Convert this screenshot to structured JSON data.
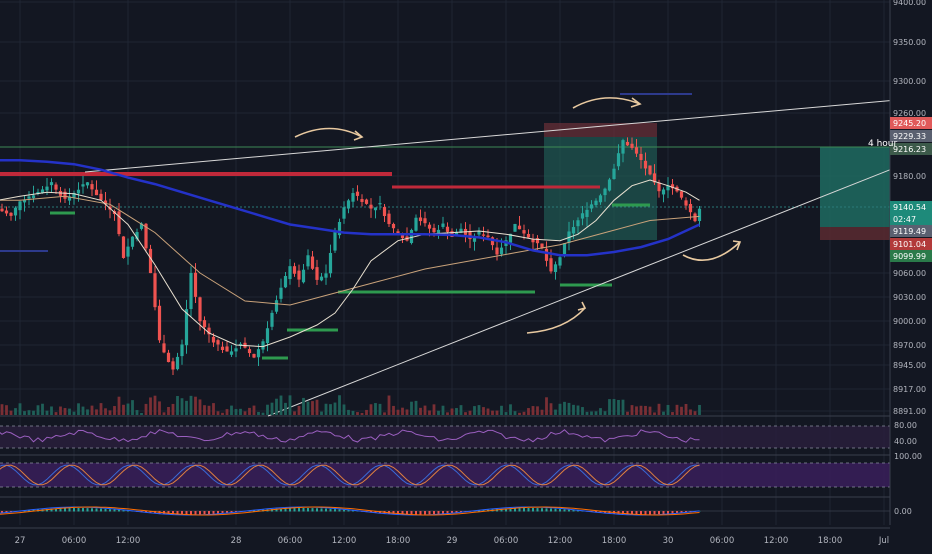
{
  "chart_data": {
    "type": "candlestick",
    "symbol_timeframe_label": "4 hour",
    "ylim": [
      8880,
      9400
    ],
    "y_ticks": [
      "9400.00",
      "9350.00",
      "9300.00",
      "9260.00",
      "9180.00",
      "9060.00",
      "9030.00",
      "9000.00",
      "8970.00",
      "8945.00",
      "8917.00",
      "8891.00"
    ],
    "x_ticks": [
      {
        "label": "27",
        "t": 0
      },
      {
        "label": "06:00",
        "t": 6
      },
      {
        "label": "12:00",
        "t": 12
      },
      {
        "label": "28",
        "t": 24
      },
      {
        "label": "06:00",
        "t": 30
      },
      {
        "label": "12:00",
        "t": 36
      },
      {
        "label": "18:00",
        "t": 42
      },
      {
        "label": "29",
        "t": 48
      },
      {
        "label": "06:00",
        "t": 54
      },
      {
        "label": "12:00",
        "t": 60
      },
      {
        "label": "18:00",
        "t": 66
      },
      {
        "label": "30",
        "t": 72
      },
      {
        "label": "06:00",
        "t": 78
      },
      {
        "label": "12:00",
        "t": 84
      },
      {
        "label": "18:00",
        "t": 90
      },
      {
        "label": "Jul",
        "t": 96
      }
    ],
    "price_labels": [
      {
        "label": "9245.20",
        "value": 9245.2,
        "color": "#e05a5a"
      },
      {
        "label": "9229.33",
        "value": 9229.33,
        "color": "#5a6070"
      },
      {
        "label": "9216.23",
        "value": 9216.23,
        "color": "#3c5a4a"
      },
      {
        "label": "9140.54",
        "value": 9140.54,
        "color": "#1e8a7a"
      },
      {
        "label": "02:47",
        "value": 9128,
        "color": "#1e8a7a"
      },
      {
        "label": "9119.49",
        "value": 9119.49,
        "color": "#5a6070"
      },
      {
        "label": "9101.04",
        "value": 9101.04,
        "color": "#b23a3a"
      },
      {
        "label": "9099.99",
        "value": 9099.99,
        "color": "#2a7a4a"
      }
    ],
    "price_path": [
      [
        -2.5,
        9140
      ],
      [
        -1,
        9130
      ],
      [
        0,
        9150
      ],
      [
        2,
        9160
      ],
      [
        3.5,
        9172
      ],
      [
        5,
        9150
      ],
      [
        6,
        9160
      ],
      [
        7.5,
        9172
      ],
      [
        9,
        9150
      ],
      [
        10.5,
        9135
      ],
      [
        11.5,
        9080
      ],
      [
        12.5,
        9105
      ],
      [
        13.5,
        9120
      ],
      [
        14.5,
        9060
      ],
      [
        15.5,
        8975
      ],
      [
        16.5,
        8950
      ],
      [
        17,
        8940
      ],
      [
        18,
        8970
      ],
      [
        19,
        9060
      ],
      [
        20,
        9000
      ],
      [
        21.5,
        8975
      ],
      [
        23,
        8960
      ],
      [
        24.5,
        8970
      ],
      [
        26,
        8955
      ],
      [
        27,
        8975
      ],
      [
        28,
        9010
      ],
      [
        29,
        9040
      ],
      [
        30,
        9070
      ],
      [
        31,
        9050
      ],
      [
        32,
        9080
      ],
      [
        33,
        9050
      ],
      [
        34,
        9060
      ],
      [
        35,
        9110
      ],
      [
        36,
        9140
      ],
      [
        37,
        9160
      ],
      [
        38,
        9150
      ],
      [
        39,
        9140
      ],
      [
        40,
        9145
      ],
      [
        41,
        9120
      ],
      [
        42,
        9110
      ],
      [
        43,
        9100
      ],
      [
        44,
        9130
      ],
      [
        45,
        9120
      ],
      [
        46,
        9110
      ],
      [
        47,
        9120
      ],
      [
        48,
        9105
      ],
      [
        49,
        9115
      ],
      [
        50,
        9100
      ],
      [
        51,
        9110
      ],
      [
        52,
        9105
      ],
      [
        53,
        9085
      ],
      [
        54,
        9100
      ],
      [
        55,
        9120
      ],
      [
        56,
        9110
      ],
      [
        57,
        9100
      ],
      [
        58,
        9090
      ],
      [
        59,
        9060
      ],
      [
        60,
        9080
      ],
      [
        61,
        9110
      ],
      [
        62,
        9125
      ],
      [
        63,
        9140
      ],
      [
        64,
        9150
      ],
      [
        65,
        9165
      ],
      [
        66,
        9190
      ],
      [
        67,
        9225
      ],
      [
        68,
        9215
      ],
      [
        69,
        9200
      ],
      [
        70,
        9180
      ],
      [
        71,
        9160
      ],
      [
        72,
        9170
      ],
      [
        73,
        9160
      ],
      [
        74,
        9145
      ],
      [
        75,
        9125
      ],
      [
        75.5,
        9140
      ]
    ],
    "ma_blue": [
      [
        -2.5,
        9200
      ],
      [
        0,
        9200
      ],
      [
        3,
        9198
      ],
      [
        6,
        9195
      ],
      [
        9,
        9188
      ],
      [
        12,
        9178
      ],
      [
        15,
        9170
      ],
      [
        18,
        9160
      ],
      [
        21,
        9150
      ],
      [
        24,
        9140
      ],
      [
        27,
        9130
      ],
      [
        30,
        9120
      ],
      [
        33,
        9115
      ],
      [
        36,
        9110
      ],
      [
        39,
        9108
      ],
      [
        42,
        9108
      ],
      [
        45,
        9108
      ],
      [
        48,
        9107
      ],
      [
        51,
        9104
      ],
      [
        54,
        9098
      ],
      [
        57,
        9088
      ],
      [
        60,
        9082
      ],
      [
        63,
        9082
      ],
      [
        66,
        9086
      ],
      [
        69,
        9092
      ],
      [
        72,
        9102
      ],
      [
        75.5,
        9120
      ]
    ],
    "ma_white": [
      [
        -2.5,
        9150
      ],
      [
        0,
        9155
      ],
      [
        3,
        9160
      ],
      [
        6,
        9158
      ],
      [
        9,
        9150
      ],
      [
        12,
        9120
      ],
      [
        15,
        9070
      ],
      [
        18,
        9015
      ],
      [
        21,
        8985
      ],
      [
        24,
        8970
      ],
      [
        27,
        8968
      ],
      [
        30,
        8980
      ],
      [
        33,
        8995
      ],
      [
        35,
        9010
      ],
      [
        37,
        9040
      ],
      [
        39,
        9075
      ],
      [
        42,
        9100
      ],
      [
        45,
        9108
      ],
      [
        48,
        9110
      ],
      [
        51,
        9112
      ],
      [
        54,
        9108
      ],
      [
        57,
        9102
      ],
      [
        60,
        9100
      ],
      [
        62,
        9108
      ],
      [
        64,
        9125
      ],
      [
        66,
        9150
      ],
      [
        68,
        9168
      ],
      [
        70,
        9175
      ],
      [
        72,
        9168
      ],
      [
        74,
        9160
      ],
      [
        75.5,
        9150
      ]
    ],
    "ma_orange": [
      [
        -2.5,
        9150
      ],
      [
        0,
        9150
      ],
      [
        5,
        9155
      ],
      [
        10,
        9145
      ],
      [
        15,
        9110
      ],
      [
        20,
        9060
      ],
      [
        25,
        9025
      ],
      [
        30,
        9020
      ],
      [
        35,
        9035
      ],
      [
        40,
        9050
      ],
      [
        45,
        9065
      ],
      [
        50,
        9075
      ],
      [
        55,
        9085
      ],
      [
        60,
        9095
      ],
      [
        65,
        9110
      ],
      [
        70,
        9125
      ],
      [
        75.5,
        9130
      ]
    ]
  }
}
